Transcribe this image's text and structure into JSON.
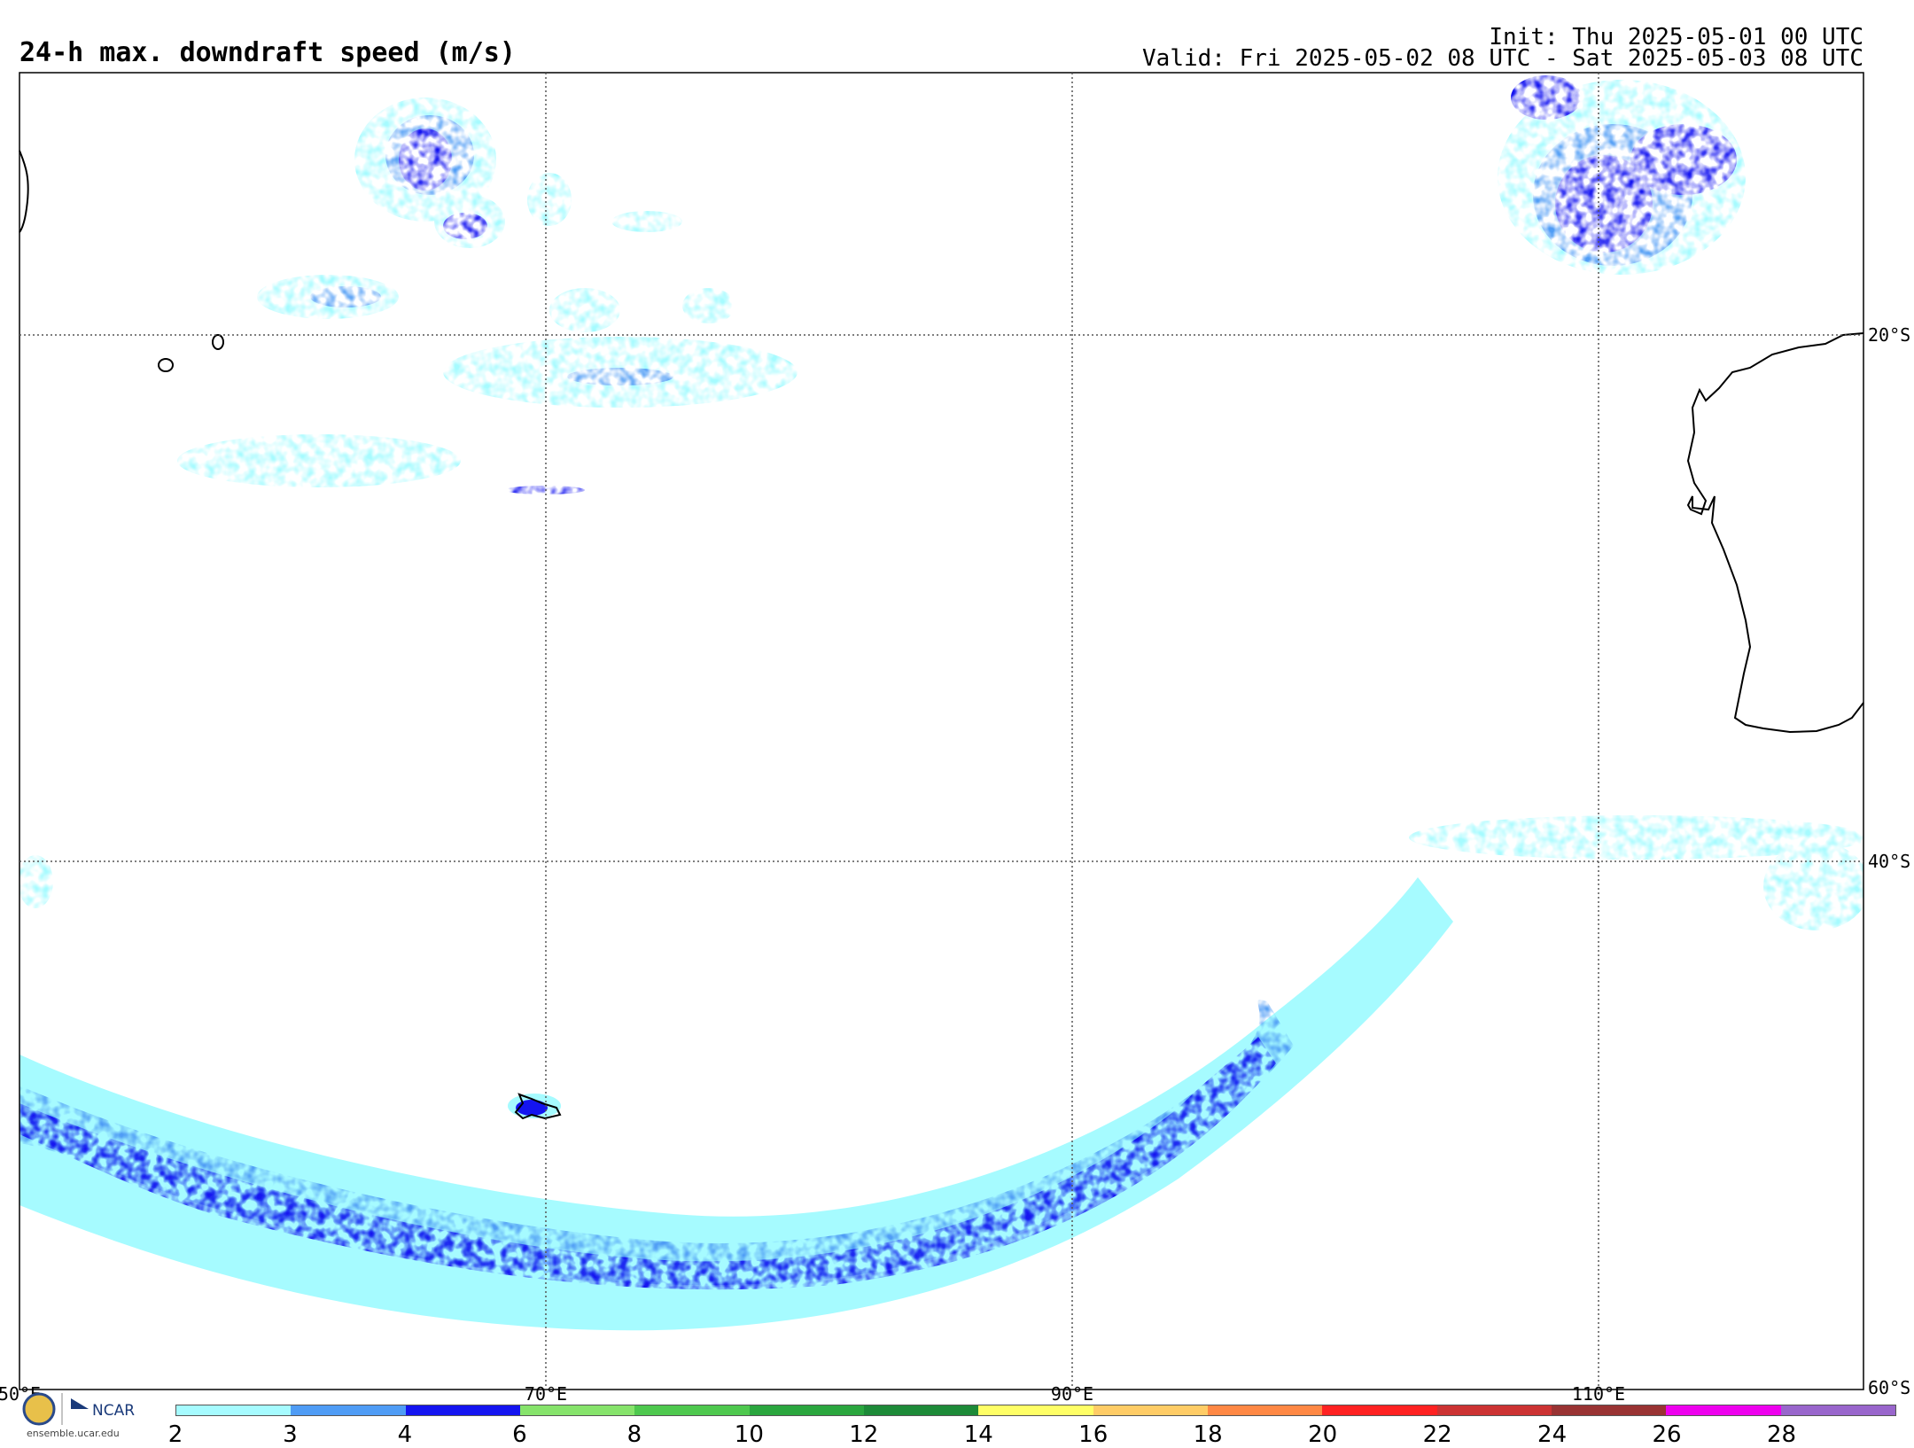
{
  "header": {
    "title": "24-h max. downdraft speed (m/s)",
    "init": "Init: Thu 2025-05-01 00 UTC",
    "valid": "Valid: Fri 2025-05-02 08 UTC - Sat 2025-05-03 08 UTC"
  },
  "map": {
    "region": "Southern Indian Ocean",
    "lon_range": [
      50,
      120
    ],
    "lat_range": [
      -10,
      -60
    ],
    "grid_lon_labels": [
      "50°E",
      "70°E",
      "90°E",
      "110°E"
    ],
    "grid_lat_labels": [
      "20°S",
      "40°S",
      "60°S"
    ],
    "field": "max downdraft speed"
  },
  "colorbar": {
    "ticks": [
      "2",
      "3",
      "4",
      "6",
      "8",
      "10",
      "12",
      "14",
      "16",
      "18",
      "20",
      "22",
      "24",
      "26",
      "28"
    ],
    "colors": [
      "#a6fbff",
      "#4f9cf5",
      "#1414f0",
      "#86e36b",
      "#4ec84e",
      "#2aa63e",
      "#1d8a38",
      "#ffff66",
      "#ffcc66",
      "#ff8844",
      "#ff2222",
      "#cc3333",
      "#993333",
      "#ee00ee",
      "#9966cc"
    ]
  },
  "logo": {
    "org": "NCAR",
    "url": "ensemble.ucar.edu"
  }
}
